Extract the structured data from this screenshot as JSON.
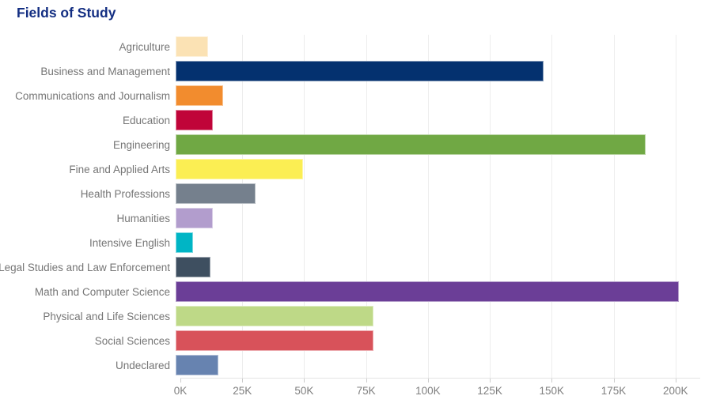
{
  "title": "Fields of Study",
  "colors": {
    "title_text": "#132e82",
    "category_label_text": "#767676",
    "tick_label_text": "#7f7f7f",
    "gridline": "#ededed",
    "axis_line": "#e4e4e4"
  },
  "chart_data": {
    "type": "bar",
    "orientation": "horizontal",
    "title": "Fields of Study",
    "xlabel": "",
    "ylabel": "",
    "grid": true,
    "legend": false,
    "unit": "students (thousands)",
    "xlim": [
      0,
      210
    ],
    "x_ticks": [
      0,
      25,
      50,
      75,
      100,
      125,
      150,
      175,
      200
    ],
    "x_tick_labels": [
      "0K",
      "25K",
      "50K",
      "75K",
      "100K",
      "125K",
      "150K",
      "175K",
      "200K"
    ],
    "categories": [
      "Agriculture",
      "Business and Management",
      "Communications and Journalism",
      "Education",
      "Engineering",
      "Fine and Applied Arts",
      "Health Professions",
      "Humanities",
      "Intensive English",
      "Legal Studies and Law Enforcement",
      "Math and Computer Science",
      "Physical and Life Sciences",
      "Social Sciences",
      "Undeclared"
    ],
    "values": [
      13,
      147,
      19,
      15,
      188,
      51,
      32,
      15,
      7,
      14,
      201,
      79,
      79,
      17
    ],
    "bar_colors": [
      "#fbe2b4",
      "#04316f",
      "#f28c2e",
      "#c00439",
      "#70a844",
      "#fbee53",
      "#75808d",
      "#b29dcd",
      "#00b5c5",
      "#3e4f60",
      "#6b3e97",
      "#bed987",
      "#d8525a",
      "#6783b0"
    ]
  }
}
